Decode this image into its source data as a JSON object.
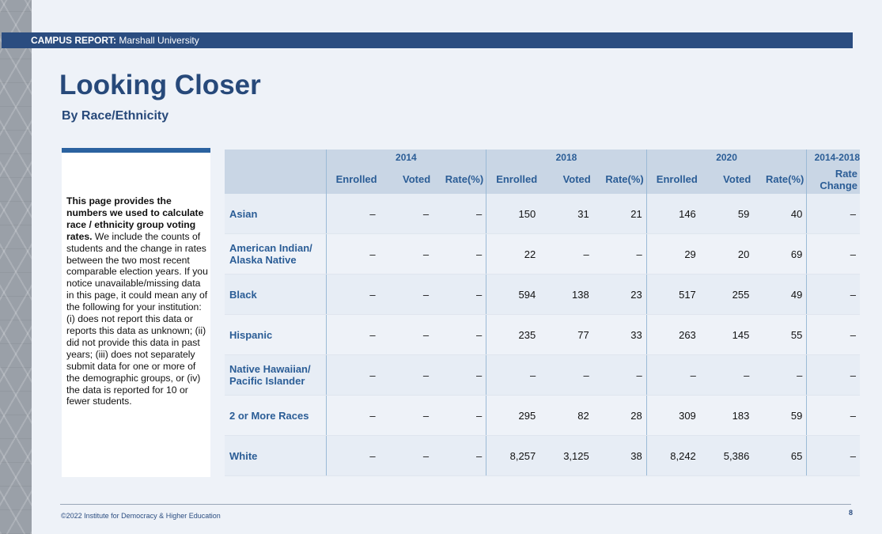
{
  "header": {
    "label_bold": "CAMPUS REPORT:",
    "label_rest": " Marshall University"
  },
  "title": "Looking Closer",
  "subtitle": "By Race/Ethnicity",
  "note": {
    "bold": "This page provides the numbers we used to calculate race / ethnicity group voting rates.",
    "rest": " We include the counts of students and the change in rates between the two most recent comparable election years. If you notice unavailable/missing data in this page, it could mean any of the following for your institution: (i) does not report this data or reports this data as unknown; (ii) did not provide this data in past years; (iii) does not separately submit data for one or more of the demographic groups, or (iv) the data is reported for 10 or fewer students."
  },
  "table": {
    "years": [
      "2014",
      "2018",
      "2020",
      "2014-2018"
    ],
    "subheaders": [
      "Enrolled",
      "Voted",
      "Rate(%)",
      "Enrolled",
      "Voted",
      "Rate(%)",
      "Enrolled",
      "Voted",
      "Rate(%)",
      "Rate Change"
    ],
    "rows": [
      {
        "label": "Asian",
        "values": [
          "–",
          "–",
          "–",
          "150",
          "31",
          "21",
          "146",
          "59",
          "40",
          "–"
        ]
      },
      {
        "label": "American Indian/ Alaska Native",
        "values": [
          "–",
          "–",
          "–",
          "22",
          "–",
          "–",
          "29",
          "20",
          "69",
          "–"
        ]
      },
      {
        "label": "Black",
        "values": [
          "–",
          "–",
          "–",
          "594",
          "138",
          "23",
          "517",
          "255",
          "49",
          "–"
        ]
      },
      {
        "label": "Hispanic",
        "values": [
          "–",
          "–",
          "–",
          "235",
          "77",
          "33",
          "263",
          "145",
          "55",
          "–"
        ]
      },
      {
        "label": "Native Hawaiian/ Pacific Islander",
        "values": [
          "–",
          "–",
          "–",
          "–",
          "–",
          "–",
          "–",
          "–",
          "–",
          "–"
        ]
      },
      {
        "label": "2 or More Races",
        "values": [
          "–",
          "–",
          "–",
          "295",
          "82",
          "28",
          "309",
          "183",
          "59",
          "–"
        ]
      },
      {
        "label": "White",
        "values": [
          "–",
          "–",
          "–",
          "8,257",
          "3,125",
          "38",
          "8,242",
          "5,386",
          "65",
          "–"
        ]
      }
    ]
  },
  "footer": {
    "copyright": "©2022 Institute for Democracy & Higher Education",
    "page_number": "8"
  }
}
